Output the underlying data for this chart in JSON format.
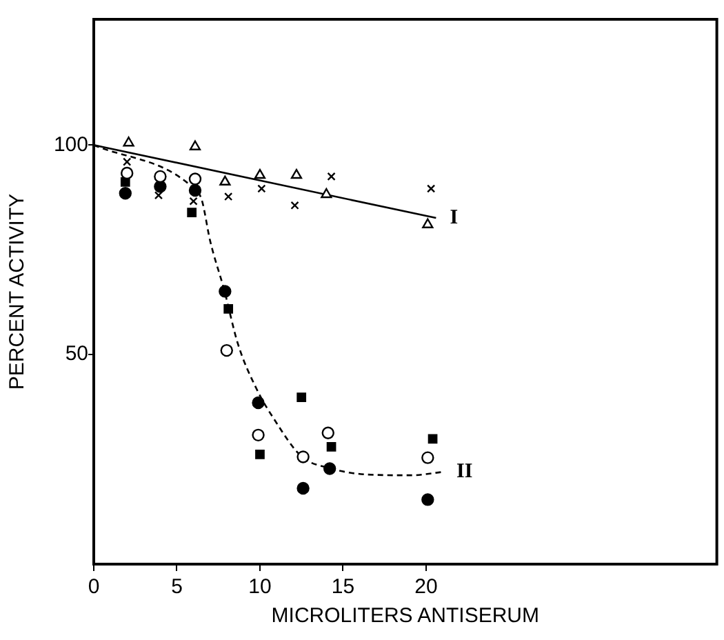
{
  "chart_data": {
    "type": "scatter",
    "xlabel": "MICROLITERS ANTISERUM",
    "ylabel": "PERCENT ACTIVITY",
    "xlim": [
      0,
      37.5
    ],
    "ylim": [
      0,
      130
    ],
    "xticks": [
      0,
      5,
      10,
      15,
      20
    ],
    "yticks": [
      50,
      100
    ],
    "grid": false,
    "legend": false,
    "series": [
      {
        "marker": "triangle",
        "color": "#000000",
        "x": [
          2.1,
          6.1,
          7.9,
          10.0,
          12.2,
          14.0,
          20.1
        ],
        "values": [
          100.5,
          99.6,
          91.2,
          92.8,
          92.8,
          88.2,
          81
        ]
      },
      {
        "marker": "cross",
        "color": "#000000",
        "x": [
          2,
          3.9,
          6,
          8.1,
          10.1,
          12.1,
          14.3,
          20.3
        ],
        "values": [
          96,
          88,
          86.6,
          87.7,
          89.6,
          85.6,
          92.5,
          89.6
        ]
      },
      {
        "marker": "circle",
        "color": "#000000",
        "x": [
          2,
          4,
          6.1,
          8,
          9.9,
          12.6,
          14.1,
          20.1
        ],
        "values": [
          93.3,
          92.5,
          91.9,
          51,
          30.8,
          25.6,
          31.3,
          25.4
        ]
      },
      {
        "marker": "circle",
        "color": "#000000",
        "x": [
          1.9,
          4,
          6.1,
          7.9,
          9.9,
          12.6,
          14.2,
          20.1
        ],
        "values": [
          88.5,
          90.1,
          89.2,
          65.1,
          38.5,
          18.1,
          22.8,
          15.4
        ]
      },
      {
        "marker": "square",
        "color": "#000000",
        "x": [
          1.9,
          5.9,
          8.1,
          10,
          12.5,
          14.3,
          20.4
        ],
        "values": [
          91.2,
          83.9,
          60.9,
          26.2,
          39.8,
          28,
          29.9
        ]
      },
      {
        "type": "line",
        "name": "I",
        "line_style": "solid",
        "color": "#000000",
        "x": [
          0,
          20.6
        ],
        "values": [
          100,
          82.6
        ]
      },
      {
        "type": "line",
        "name": "II",
        "line_style": "dashed",
        "color": "#000000",
        "x": [
          0,
          5.9,
          6.5,
          7.0,
          7.85,
          8.68,
          9.8,
          10.9,
          12.5,
          14.2,
          16.4,
          19.1,
          21.0
        ],
        "values": [
          100,
          90.1,
          86.9,
          77.2,
          65.4,
          52.5,
          41.8,
          34.3,
          25.7,
          22.9,
          21.4,
          21.2,
          22
        ]
      }
    ]
  }
}
